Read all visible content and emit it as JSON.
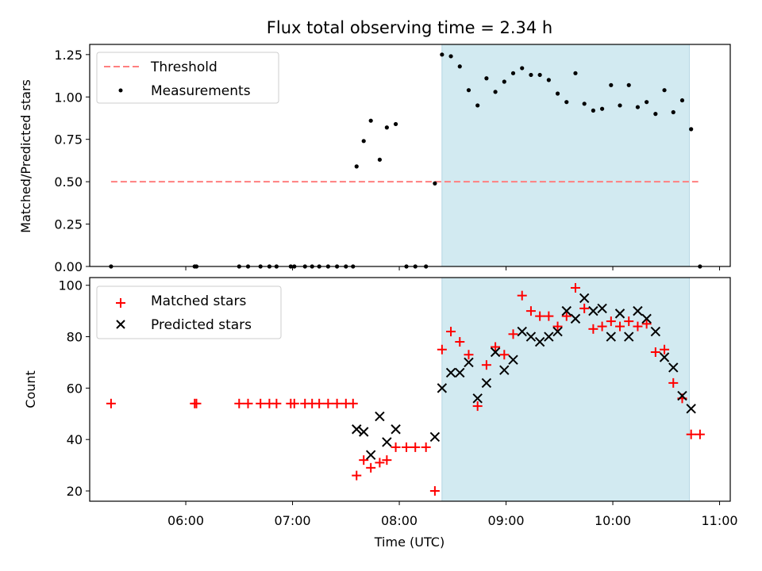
{
  "chart_data": [
    {
      "type": "scatter",
      "title": "Flux total observing time = 2.34 h",
      "xlabel": "",
      "ylabel": "Matched/Predicted stars",
      "xlim": [
        "05:06",
        "11:06"
      ],
      "ylim": [
        0,
        1.31
      ],
      "yticks": [
        "0.00",
        "0.25",
        "0.50",
        "0.75",
        "1.00",
        "1.25"
      ],
      "legend_position": "upper-left",
      "shaded_region": {
        "from": "08:24",
        "to": "10:43"
      },
      "series": [
        {
          "name": "Threshold",
          "kind": "dashed-line",
          "color": "#ff7f7f",
          "points": [
            [
              "05:18",
              0.5
            ],
            [
              "10:48",
              0.5
            ]
          ]
        },
        {
          "name": "Measurements",
          "kind": "dots",
          "color": "#000000",
          "points": [
            [
              "05:18",
              0.0
            ],
            [
              "06:05",
              0.0
            ],
            [
              "06:06",
              0.0
            ],
            [
              "06:30",
              0.0
            ],
            [
              "06:35",
              0.0
            ],
            [
              "06:42",
              0.0
            ],
            [
              "06:47",
              0.0
            ],
            [
              "06:51",
              0.0
            ],
            [
              "06:59",
              0.0
            ],
            [
              "07:01",
              0.0
            ],
            [
              "07:07",
              0.0
            ],
            [
              "07:11",
              0.0
            ],
            [
              "07:15",
              0.0
            ],
            [
              "07:20",
              0.0
            ],
            [
              "07:25",
              0.0
            ],
            [
              "07:30",
              0.0
            ],
            [
              "07:34",
              0.0
            ],
            [
              "07:36",
              0.59
            ],
            [
              "07:40",
              0.74
            ],
            [
              "07:44",
              0.86
            ],
            [
              "07:49",
              0.63
            ],
            [
              "07:53",
              0.82
            ],
            [
              "07:58",
              0.84
            ],
            [
              "08:04",
              0.0
            ],
            [
              "08:09",
              0.0
            ],
            [
              "08:15",
              0.0
            ],
            [
              "08:20",
              0.49
            ],
            [
              "08:24",
              1.25
            ],
            [
              "08:29",
              1.24
            ],
            [
              "08:34",
              1.18
            ],
            [
              "08:39",
              1.04
            ],
            [
              "08:44",
              0.95
            ],
            [
              "08:49",
              1.11
            ],
            [
              "08:54",
              1.03
            ],
            [
              "08:59",
              1.09
            ],
            [
              "09:04",
              1.14
            ],
            [
              "09:09",
              1.17
            ],
            [
              "09:14",
              1.13
            ],
            [
              "09:19",
              1.13
            ],
            [
              "09:24",
              1.1
            ],
            [
              "09:29",
              1.02
            ],
            [
              "09:34",
              0.97
            ],
            [
              "09:39",
              1.14
            ],
            [
              "09:44",
              0.96
            ],
            [
              "09:49",
              0.92
            ],
            [
              "09:54",
              0.93
            ],
            [
              "09:59",
              1.07
            ],
            [
              "10:04",
              0.95
            ],
            [
              "10:09",
              1.07
            ],
            [
              "10:14",
              0.94
            ],
            [
              "10:19",
              0.97
            ],
            [
              "10:24",
              0.9
            ],
            [
              "10:29",
              1.04
            ],
            [
              "10:34",
              0.91
            ],
            [
              "10:39",
              0.98
            ],
            [
              "10:44",
              0.81
            ],
            [
              "10:49",
              0.0
            ]
          ]
        }
      ]
    },
    {
      "type": "scatter",
      "title": "",
      "xlabel": "Time (UTC)",
      "ylabel": "Count",
      "xlim": [
        "05:06",
        "11:06"
      ],
      "ylim": [
        16,
        103
      ],
      "xticks": [
        "06:00",
        "07:00",
        "08:00",
        "09:00",
        "10:00",
        "11:00"
      ],
      "yticks": [
        "20",
        "40",
        "60",
        "80",
        "100"
      ],
      "legend_position": "upper-left",
      "shaded_region": {
        "from": "08:24",
        "to": "10:43"
      },
      "series": [
        {
          "name": "Matched stars",
          "kind": "plus",
          "color": "#ff0000",
          "points": [
            [
              "05:18",
              54
            ],
            [
              "06:05",
              54
            ],
            [
              "06:06",
              54
            ],
            [
              "06:30",
              54
            ],
            [
              "06:35",
              54
            ],
            [
              "06:42",
              54
            ],
            [
              "06:47",
              54
            ],
            [
              "06:51",
              54
            ],
            [
              "06:59",
              54
            ],
            [
              "07:01",
              54
            ],
            [
              "07:07",
              54
            ],
            [
              "07:11",
              54
            ],
            [
              "07:15",
              54
            ],
            [
              "07:20",
              54
            ],
            [
              "07:25",
              54
            ],
            [
              "07:30",
              54
            ],
            [
              "07:34",
              54
            ],
            [
              "07:36",
              26
            ],
            [
              "07:40",
              32
            ],
            [
              "07:44",
              29
            ],
            [
              "07:49",
              31
            ],
            [
              "07:53",
              32
            ],
            [
              "07:58",
              37
            ],
            [
              "08:04",
              37
            ],
            [
              "08:09",
              37
            ],
            [
              "08:15",
              37
            ],
            [
              "08:20",
              20
            ],
            [
              "08:24",
              75
            ],
            [
              "08:29",
              82
            ],
            [
              "08:34",
              78
            ],
            [
              "08:39",
              73
            ],
            [
              "08:44",
              53
            ],
            [
              "08:49",
              69
            ],
            [
              "08:54",
              76
            ],
            [
              "08:59",
              73
            ],
            [
              "09:04",
              81
            ],
            [
              "09:09",
              96
            ],
            [
              "09:14",
              90
            ],
            [
              "09:19",
              88
            ],
            [
              "09:24",
              88
            ],
            [
              "09:29",
              84
            ],
            [
              "09:34",
              88
            ],
            [
              "09:39",
              99
            ],
            [
              "09:44",
              91
            ],
            [
              "09:49",
              83
            ],
            [
              "09:54",
              84
            ],
            [
              "09:59",
              86
            ],
            [
              "10:04",
              84
            ],
            [
              "10:09",
              86
            ],
            [
              "10:14",
              84
            ],
            [
              "10:19",
              85
            ],
            [
              "10:24",
              74
            ],
            [
              "10:29",
              75
            ],
            [
              "10:34",
              62
            ],
            [
              "10:39",
              56
            ],
            [
              "10:44",
              42
            ],
            [
              "10:49",
              42
            ]
          ]
        },
        {
          "name": "Predicted stars",
          "kind": "cross",
          "color": "#000000",
          "points": [
            [
              "07:36",
              44
            ],
            [
              "07:40",
              43
            ],
            [
              "07:44",
              34
            ],
            [
              "07:49",
              49
            ],
            [
              "07:53",
              39
            ],
            [
              "07:58",
              44
            ],
            [
              "08:20",
              41
            ],
            [
              "08:24",
              60
            ],
            [
              "08:29",
              66
            ],
            [
              "08:34",
              66
            ],
            [
              "08:39",
              70
            ],
            [
              "08:44",
              56
            ],
            [
              "08:49",
              62
            ],
            [
              "08:54",
              74
            ],
            [
              "08:59",
              67
            ],
            [
              "09:04",
              71
            ],
            [
              "09:09",
              82
            ],
            [
              "09:14",
              80
            ],
            [
              "09:19",
              78
            ],
            [
              "09:24",
              80
            ],
            [
              "09:29",
              82
            ],
            [
              "09:34",
              90
            ],
            [
              "09:39",
              87
            ],
            [
              "09:44",
              95
            ],
            [
              "09:49",
              90
            ],
            [
              "09:54",
              91
            ],
            [
              "09:59",
              80
            ],
            [
              "10:04",
              89
            ],
            [
              "10:09",
              80
            ],
            [
              "10:14",
              90
            ],
            [
              "10:19",
              87
            ],
            [
              "10:24",
              82
            ],
            [
              "10:29",
              72
            ],
            [
              "10:34",
              68
            ],
            [
              "10:39",
              57
            ],
            [
              "10:44",
              52
            ]
          ]
        }
      ]
    }
  ]
}
